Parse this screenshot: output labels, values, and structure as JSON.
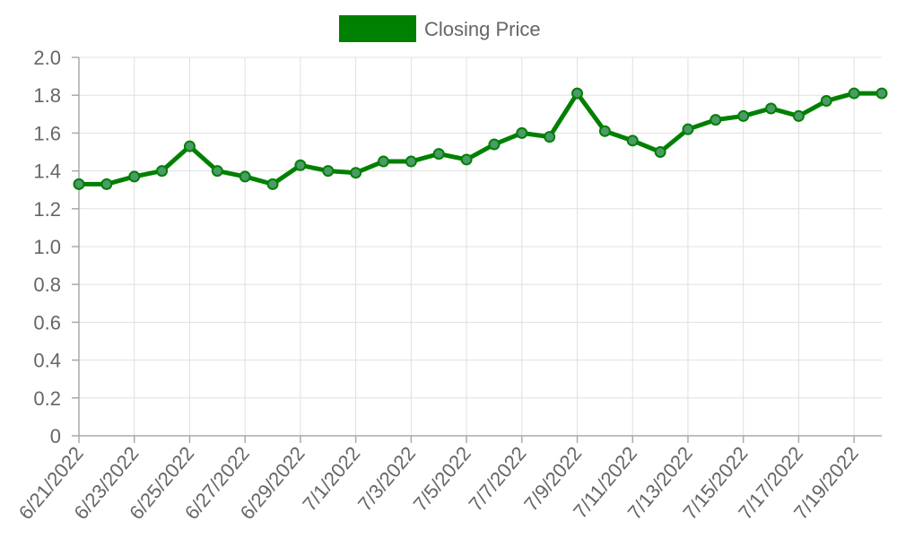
{
  "chart_data": {
    "type": "line",
    "title": "",
    "xlabel": "",
    "ylabel": "",
    "ylim": [
      0,
      2.0
    ],
    "y_ticks": [
      "0",
      "0.2",
      "0.4",
      "0.6",
      "0.8",
      "1.0",
      "1.2",
      "1.4",
      "1.6",
      "1.8",
      "2.0"
    ],
    "grid": true,
    "legend": {
      "position": "top-center",
      "label": "Closing Price"
    },
    "x": [
      "6/21/2022",
      "6/22/2022",
      "6/23/2022",
      "6/24/2022",
      "6/25/2022",
      "6/26/2022",
      "6/27/2022",
      "6/28/2022",
      "6/29/2022",
      "6/30/2022",
      "7/1/2022",
      "7/2/2022",
      "7/3/2022",
      "7/4/2022",
      "7/5/2022",
      "7/6/2022",
      "7/7/2022",
      "7/8/2022",
      "7/9/2022",
      "7/10/2022",
      "7/11/2022",
      "7/12/2022",
      "7/13/2022",
      "7/14/2022",
      "7/15/2022",
      "7/16/2022",
      "7/17/2022",
      "7/18/2022",
      "7/19/2022",
      "7/20/2022"
    ],
    "x_tick_labels": [
      "6/21/2022",
      "6/23/2022",
      "6/25/2022",
      "6/27/2022",
      "6/29/2022",
      "7/1/2022",
      "7/3/2022",
      "7/5/2022",
      "7/7/2022",
      "7/9/2022",
      "7/11/2022",
      "7/13/2022",
      "7/15/2022",
      "7/17/2022",
      "7/19/2022"
    ],
    "series": [
      {
        "name": "Closing Price",
        "color": "#008000",
        "point_fill": "#4a9a6a",
        "values": [
          1.33,
          1.33,
          1.37,
          1.4,
          1.53,
          1.4,
          1.37,
          1.33,
          1.43,
          1.4,
          1.39,
          1.45,
          1.45,
          1.49,
          1.46,
          1.54,
          1.6,
          1.58,
          1.81,
          1.61,
          1.56,
          1.5,
          1.62,
          1.67,
          1.69,
          1.73,
          1.69,
          1.77,
          1.81,
          1.81
        ]
      }
    ]
  }
}
